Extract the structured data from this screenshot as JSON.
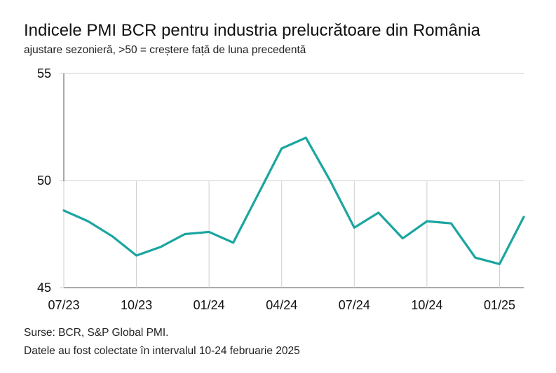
{
  "header": {
    "title": "Indicele PMI BCR pentru industria prelucrătoare din România",
    "subtitle": "ajustare sezonieră, >50 = creștere față de luna precedentă"
  },
  "footer": {
    "source": "Surse: BCR, S&P Global PMI.",
    "note": "Datele au fost colectate în intervalul 10-24 februarie 2025"
  },
  "colors": {
    "line": "#1aa5a0",
    "grid": "#cfcfcf",
    "axis": "#555555"
  },
  "chart_data": {
    "type": "line",
    "title": "Indicele PMI BCR pentru industria prelucrătoare din România",
    "subtitle": "ajustare sezonieră, >50 = creștere față de luna precedentă",
    "xlabel": "",
    "ylabel": "",
    "ylim": [
      45,
      55
    ],
    "yticks": [
      "45",
      "50",
      "55"
    ],
    "xtick_labels": [
      "07/23",
      "10/23",
      "01/24",
      "04/24",
      "07/24",
      "10/24",
      "01/25"
    ],
    "grid": "horizontal",
    "x": [
      "07/23",
      "08/23",
      "09/23",
      "10/23",
      "11/23",
      "12/23",
      "01/24",
      "02/24",
      "03/24",
      "04/24",
      "05/24",
      "06/24",
      "07/24",
      "08/24",
      "09/24",
      "10/24",
      "11/24",
      "12/24",
      "01/25",
      "02/25"
    ],
    "series": [
      {
        "values": [
          48.6,
          48.1,
          47.4,
          46.5,
          46.9,
          47.5,
          47.6,
          47.1,
          49.3,
          51.5,
          52.0,
          50.0,
          47.8,
          48.5,
          47.3,
          48.1,
          48.0,
          46.4,
          46.1,
          48.3
        ]
      }
    ]
  }
}
